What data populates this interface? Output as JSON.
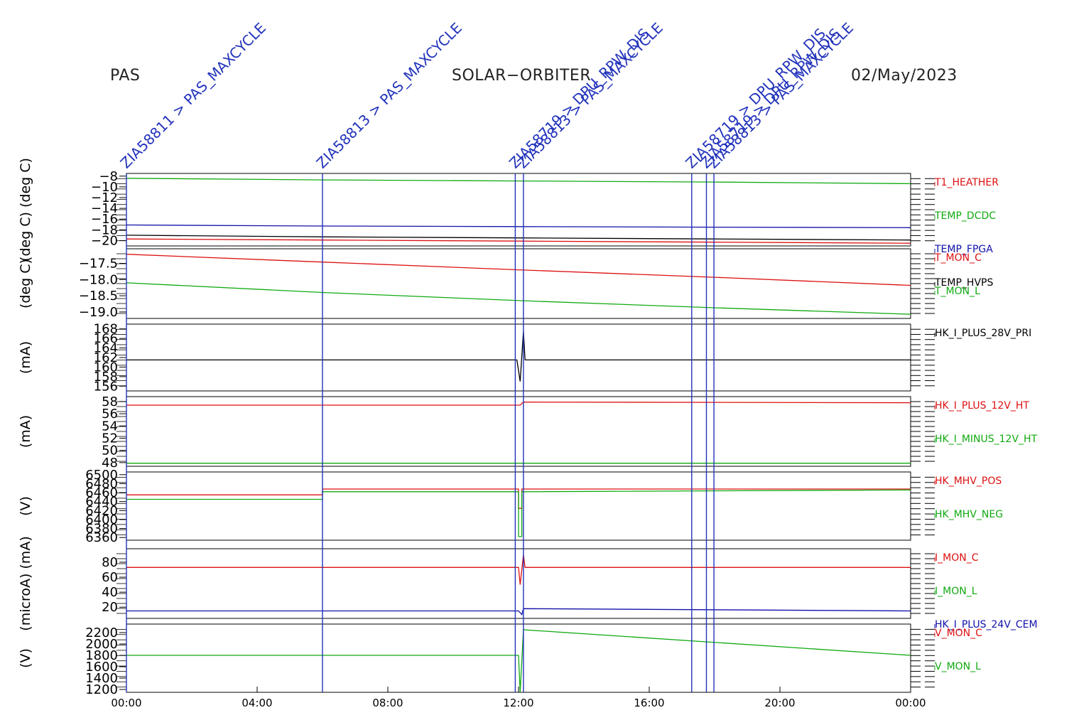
{
  "header": {
    "instrument": "PAS",
    "mission": "SOLAR−ORBITER",
    "date": "02/May/2023"
  },
  "chart_data": {
    "type": "line",
    "x_unit": "hour of day (02/May/2023)",
    "xlim": [
      0,
      24
    ],
    "x_ticks": [
      0,
      4,
      8,
      12,
      16,
      20,
      24
    ],
    "x_tick_labels": [
      "00:00",
      "04:00",
      "08:00",
      "12:00",
      "16:00",
      "20:00",
      "00:00"
    ],
    "colors": {
      "red": "#dd1111",
      "green": "#11aa11",
      "blue": "#1111aa",
      "black": "#000000",
      "cmd": "#2233bb"
    },
    "commands": [
      {
        "t": 0.0,
        "label": "ZIA58811 > PAS_MAXCYCLE"
      },
      {
        "t": 6.0,
        "label": "ZIA58813 > PAS_MAXCYCLE"
      },
      {
        "t": 11.9,
        "label": "ZIA58719 > DPU_RPW_DIS"
      },
      {
        "t": 12.15,
        "label": "ZIA58813 > PAS_MAXCYCLE"
      },
      {
        "t": 17.3,
        "label": "ZIA58719 > DPU_RPW_DIS"
      },
      {
        "t": 17.75,
        "label": "ZIA58719 > DPU_RPW_DIS"
      },
      {
        "t": 17.98,
        "label": "ZIA58813 > PAS_MAXCYCLE"
      }
    ],
    "panels": [
      {
        "ylabel": "(deg C) (deg C)",
        "ylim": [
          -21,
          -7.5
        ],
        "yticks": [
          -8,
          -10,
          -12,
          -14,
          -16,
          -18,
          -20
        ],
        "ytick_labels": [
          "−8",
          "−10",
          "−12",
          "−14",
          "−16",
          "−18",
          "−20"
        ],
        "series": [
          {
            "name": "T1_HEATHER",
            "color": "red",
            "x": [
              0,
              6,
              12,
              18,
              24
            ],
            "y": [
              -19.7,
              -19.9,
              -20.1,
              -20.3,
              -20.5
            ]
          },
          {
            "name": "TEMP_DCDC",
            "color": "green",
            "x": [
              0,
              6,
              12,
              18,
              24
            ],
            "y": [
              -8.4,
              -8.7,
              -8.9,
              -9.1,
              -9.4
            ]
          },
          {
            "name": "TEMP_FPGA",
            "color": "blue",
            "x": [
              0,
              6,
              12,
              18,
              24
            ],
            "y": [
              -17.1,
              -17.3,
              -17.4,
              -17.5,
              -17.6
            ]
          },
          {
            "name": "TEMP_HVPS",
            "color": "black",
            "x": [
              0,
              6,
              12,
              18,
              24
            ],
            "y": [
              -19.0,
              -19.3,
              -19.5,
              -19.7,
              -19.9
            ]
          }
        ]
      },
      {
        "ylabel": "(deg C)",
        "ylim": [
          -19.2,
          -17.05
        ],
        "yticks": [
          -17.5,
          -18.0,
          -18.5,
          -19.0
        ],
        "ytick_labels": [
          "−17.5",
          "−18.0",
          "−18.5",
          "−19.0"
        ],
        "series": [
          {
            "name": "T_MON_C",
            "color": "red",
            "x": [
              0,
              6,
              12,
              18,
              24
            ],
            "y": [
              -17.22,
              -17.46,
              -17.7,
              -17.93,
              -18.18
            ]
          },
          {
            "name": "T_MON_L",
            "color": "green",
            "x": [
              0,
              6,
              12,
              18,
              24
            ],
            "y": [
              -18.1,
              -18.4,
              -18.65,
              -18.87,
              -19.07
            ]
          }
        ]
      },
      {
        "ylabel": "(mA)",
        "ylim": [
          155,
          169
        ],
        "yticks": [
          168,
          166,
          164,
          162,
          160,
          158,
          156
        ],
        "ytick_labels": [
          "168",
          "166",
          "164",
          "162",
          "160",
          "158",
          "156"
        ],
        "series": [
          {
            "name": "HK_I_PLUS_28V_PRI",
            "color": "black",
            "x": [
              0,
              11.95,
              12.05,
              12.15,
              12.2,
              24
            ],
            "y": [
              161.5,
              161.5,
              157,
              167.5,
              161.5,
              161.5
            ]
          }
        ]
      },
      {
        "ylabel": "(mA)",
        "ylim": [
          47.4,
          58.8
        ],
        "yticks": [
          58,
          56,
          54,
          52,
          50,
          48
        ],
        "ytick_labels": [
          "58",
          "56",
          "54",
          "52",
          "50",
          "48"
        ],
        "series": [
          {
            "name": "HK_I_PLUS_12V_HT",
            "color": "red",
            "x": [
              0,
              12.05,
              12.15,
              24
            ],
            "y": [
              57.4,
              57.4,
              57.9,
              57.8
            ]
          },
          {
            "name": "HK_I_MINUS_12V_HT",
            "color": "green",
            "x": [
              0,
              24
            ],
            "y": [
              47.9,
              47.9
            ]
          }
        ]
      },
      {
        "ylabel": "(V)",
        "ylim": [
          6354,
          6506
        ],
        "yticks": [
          6500,
          6480,
          6460,
          6440,
          6420,
          6400,
          6380,
          6360
        ],
        "ytick_labels": [
          "6500",
          "6480",
          "6460",
          "6440",
          "6420",
          "6400",
          "6380",
          "6360"
        ],
        "series": [
          {
            "name": "HK_MHV_POS",
            "color": "red",
            "x": [
              0,
              6,
              6,
              12,
              12,
              12.1,
              12.1,
              24
            ],
            "y": [
              6455,
              6455,
              6468,
              6468,
              6425,
              6425,
              6468,
              6468
            ]
          },
          {
            "name": "HK_MHV_NEG",
            "color": "green",
            "x": [
              0,
              6,
              6,
              12,
              12,
              12.1,
              12.1,
              24
            ],
            "y": [
              6445,
              6445,
              6462,
              6462,
              6362,
              6362,
              6462,
              6466
            ]
          }
        ]
      },
      {
        "ylabel": "(microA) (mA)",
        "ylim": [
          5,
          98
        ],
        "yticks": [
          80,
          60,
          40,
          20
        ],
        "ytick_labels": [
          "80",
          "60",
          "40",
          "20"
        ],
        "series": [
          {
            "name": "I_MON_C",
            "color": "red",
            "x": [
              0,
              12.0,
              12.05,
              12.15,
              12.2,
              24
            ],
            "y": [
              73,
              73,
              50,
              90,
              73,
              73
            ]
          },
          {
            "name": "I_MON_L",
            "color": "green",
            "x": [],
            "y": []
          },
          {
            "name": "HK_I_PLUS_24V_CEM",
            "color": "blue",
            "x": [
              0,
              12.0,
              12.1,
              12.15,
              24
            ],
            "y": [
              15,
              15,
              10,
              18,
              15
            ]
          }
        ]
      },
      {
        "ylabel": "(V)",
        "ylim": [
          1150,
          2350
        ],
        "yticks": [
          2200,
          2000,
          1800,
          1600,
          1400,
          1200
        ],
        "ytick_labels": [
          "2200",
          "2000",
          "1800",
          "1600",
          "1400",
          "1200"
        ],
        "series": [
          {
            "name": "V_MON_C",
            "color": "red",
            "x": [],
            "y": []
          },
          {
            "name": "V_MON_L",
            "color": "green",
            "x": [
              0,
              12.0,
              12.05,
              12.15,
              24
            ],
            "y": [
              1800,
              1800,
              1150,
              2250,
              1800
            ]
          }
        ]
      }
    ]
  }
}
